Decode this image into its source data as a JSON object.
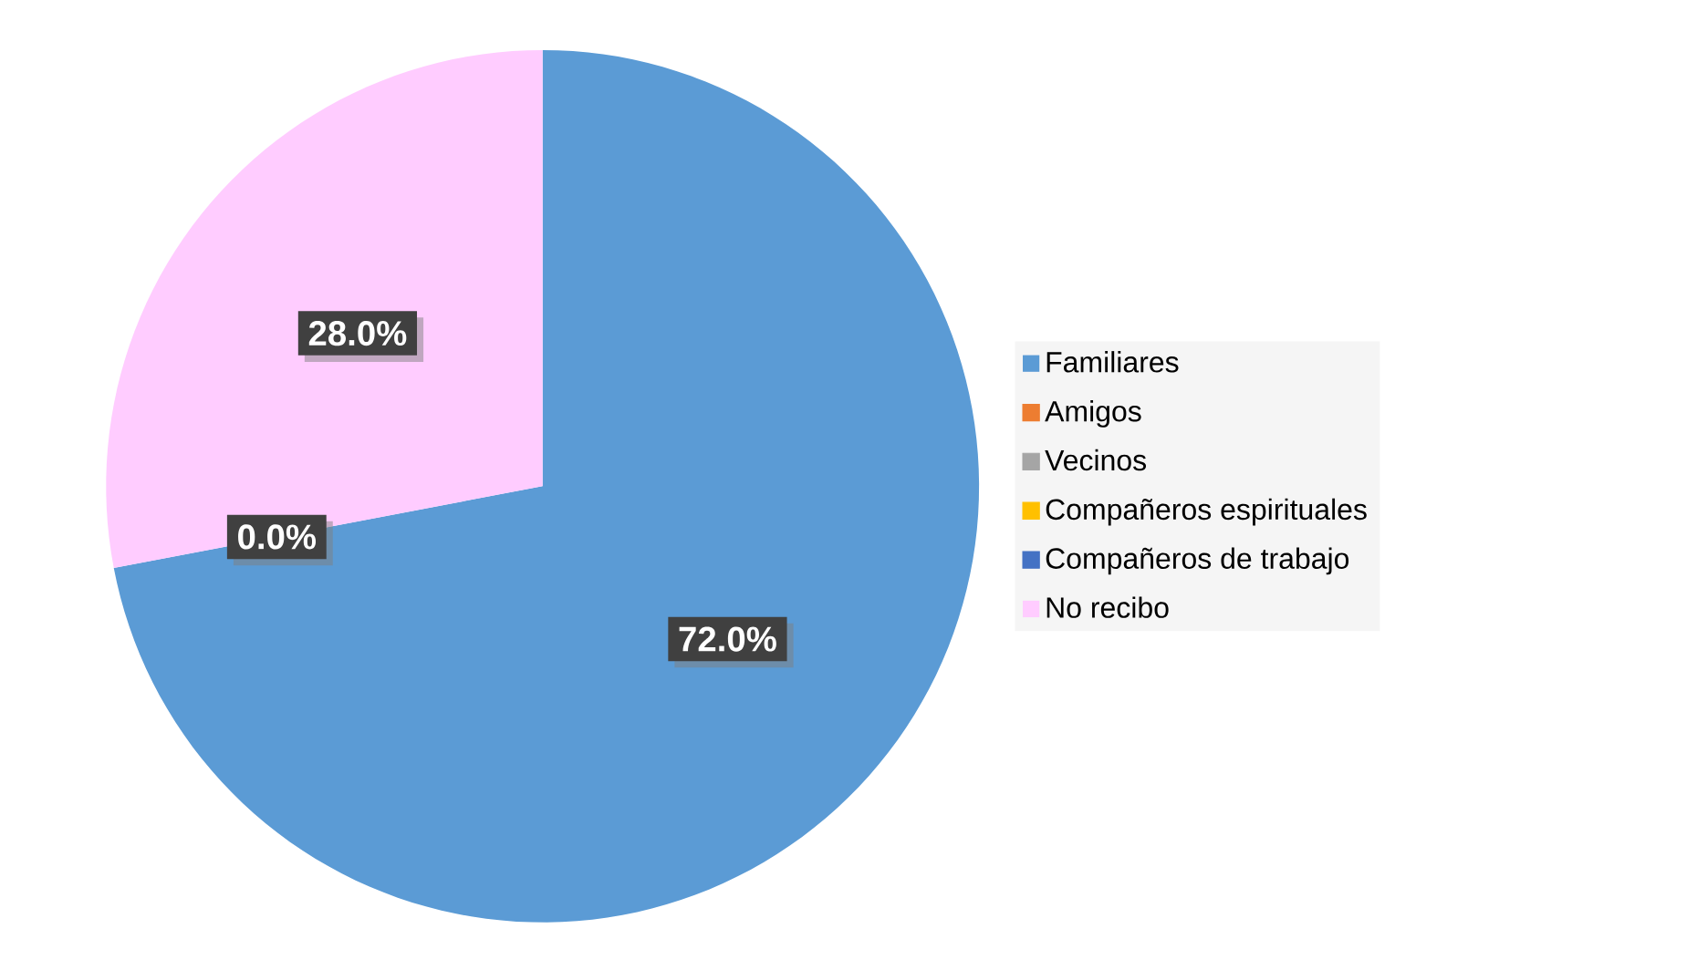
{
  "chart_data": {
    "type": "pie",
    "categories": [
      "Familiares",
      "Amigos",
      "Vecinos",
      "Compañeros espirituales",
      "Compañeros de trabajo",
      "No recibo"
    ],
    "values": [
      72,
      0,
      0,
      0,
      0,
      28
    ],
    "colors": [
      "#5b9bd5",
      "#ed7d31",
      "#a5a5a5",
      "#ffc000",
      "#4472c4",
      "#ffccff"
    ],
    "value_labels": [
      "72.0%",
      "0.0%",
      null,
      null,
      null,
      "28.0%"
    ],
    "legend": "right"
  }
}
